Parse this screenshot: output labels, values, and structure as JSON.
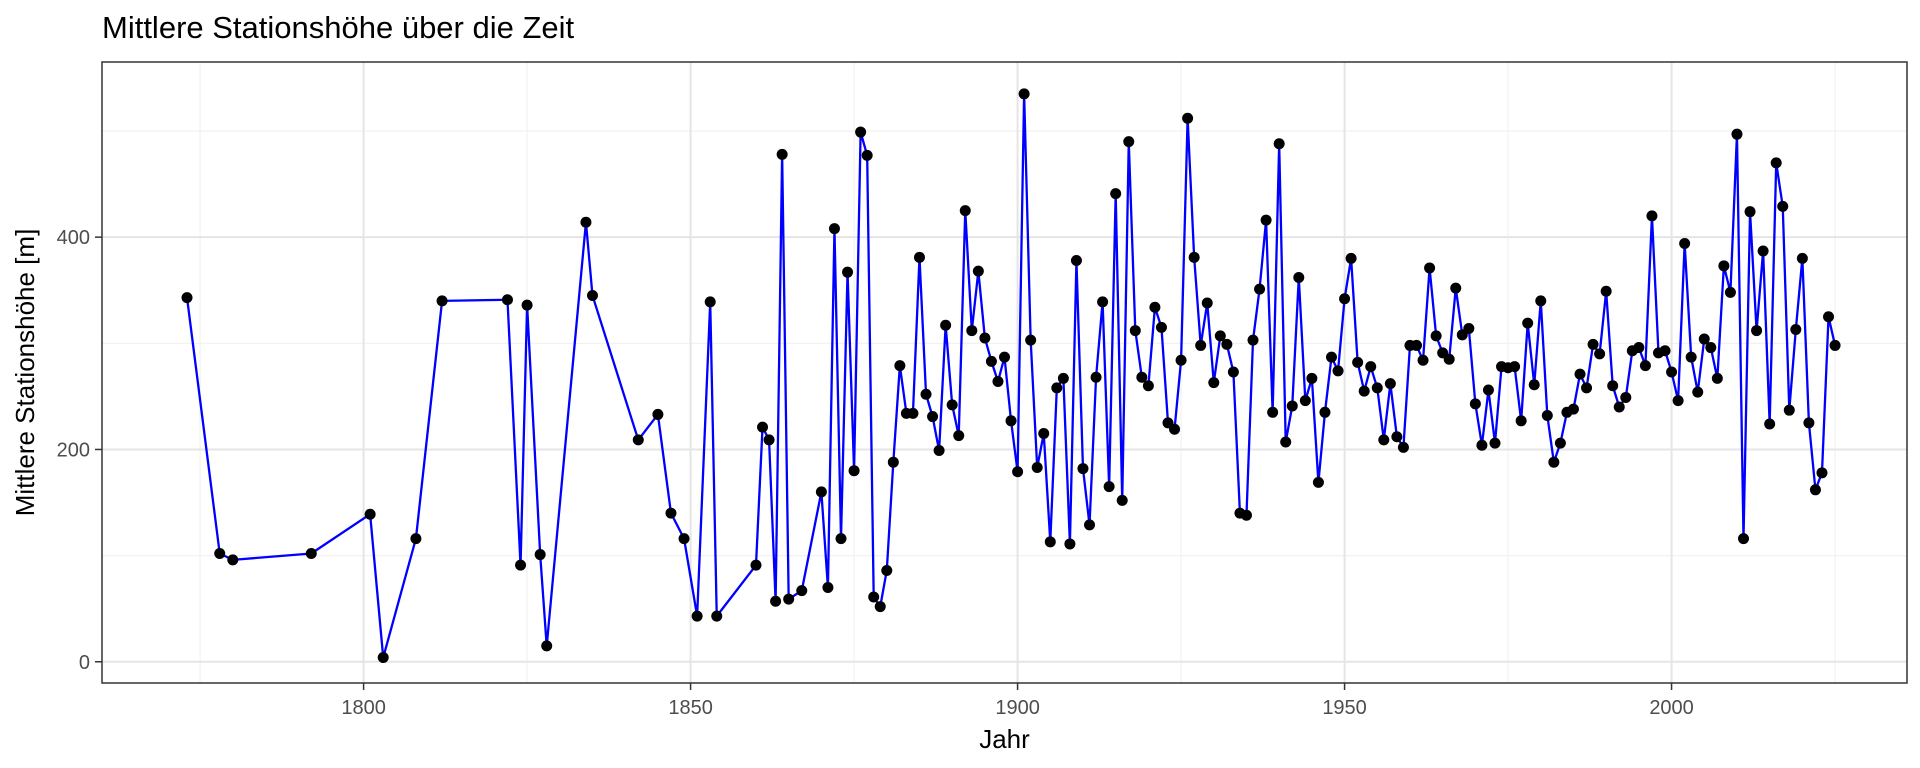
{
  "chart_data": {
    "type": "line",
    "title": "Mittlere Stationshöhe über die Zeit",
    "xlabel": "Jahr",
    "ylabel": "Mittlere Stationshöhe [m]",
    "xlim": [
      1760,
      2036
    ],
    "ylim": [
      -20,
      565
    ],
    "x_ticks": [
      1800,
      1850,
      1900,
      1950,
      2000
    ],
    "y_ticks": [
      0,
      200,
      400
    ],
    "grid": true,
    "legend": "none",
    "colors": {
      "line": "#0000ff",
      "points": "#000000"
    },
    "series": [
      {
        "x": [
          1773,
          1778,
          1780,
          1792,
          1801,
          1803,
          1808,
          1812,
          1822,
          1824,
          1825,
          1827,
          1828,
          1834,
          1835,
          1842,
          1845,
          1847,
          1849,
          1851,
          1853,
          1854,
          1860,
          1861,
          1862,
          1863,
          1864,
          1865,
          1867,
          1870,
          1871,
          1872,
          1873,
          1874,
          1875,
          1876,
          1877,
          1878,
          1879,
          1880,
          1881,
          1882,
          1883,
          1884,
          1885,
          1886,
          1887,
          1888,
          1889,
          1890,
          1891,
          1892,
          1893,
          1894,
          1895,
          1896,
          1897,
          1898,
          1899,
          1900,
          1901,
          1902,
          1903,
          1904,
          1905,
          1906,
          1907,
          1908,
          1909,
          1910,
          1911,
          1912,
          1913,
          1914,
          1915,
          1916,
          1917,
          1918,
          1919,
          1920,
          1921,
          1922,
          1923,
          1924,
          1925,
          1926,
          1927,
          1928,
          1929,
          1930,
          1931,
          1932,
          1933,
          1934,
          1935,
          1936,
          1937,
          1938,
          1939,
          1940,
          1941,
          1942,
          1943,
          1944,
          1945,
          1946,
          1947,
          1948,
          1949,
          1950,
          1951,
          1952,
          1953,
          1954,
          1955,
          1956,
          1957,
          1958,
          1959,
          1960,
          1961,
          1962,
          1963,
          1964,
          1965,
          1966,
          1967,
          1968,
          1969,
          1970,
          1971,
          1972,
          1973,
          1974,
          1975,
          1976,
          1977,
          1978,
          1979,
          1980,
          1981,
          1982,
          1983,
          1984,
          1985,
          1986,
          1987,
          1988,
          1989,
          1990,
          1991,
          1992,
          1993,
          1994,
          1995,
          1996,
          1997,
          1998,
          1999,
          2000,
          2001,
          2002,
          2003,
          2004,
          2005,
          2006,
          2007,
          2008,
          2009,
          2010,
          2011,
          2012,
          2013,
          2014,
          2015,
          2016,
          2017,
          2018,
          2019,
          2020,
          2021,
          2022,
          2023,
          2024,
          2025
        ],
        "y": [
          343,
          102,
          96,
          102,
          139,
          4,
          116,
          340,
          341,
          91,
          336,
          101,
          15,
          414,
          345,
          209,
          233,
          140,
          116,
          43,
          339,
          43,
          91,
          221,
          209,
          57,
          478,
          59,
          67,
          160,
          70,
          408,
          116,
          367,
          180,
          499,
          477,
          61,
          52,
          86,
          188,
          279,
          234,
          234,
          381,
          252,
          231,
          199,
          317,
          242,
          213,
          425,
          312,
          368,
          305,
          283,
          264,
          287,
          227,
          179,
          535,
          303,
          183,
          215,
          113,
          258,
          267,
          111,
          378,
          182,
          129,
          268,
          339,
          165,
          441,
          152,
          490,
          312,
          268,
          260,
          334,
          315,
          225,
          219,
          284,
          512,
          381,
          298,
          338,
          263,
          307,
          299,
          273,
          140,
          138,
          303,
          351,
          416,
          235,
          488,
          207,
          241,
          362,
          246,
          267,
          169,
          235,
          287,
          274,
          342,
          380,
          282,
          255,
          278,
          258,
          209,
          262,
          212,
          202,
          298,
          298,
          284,
          371,
          307,
          291,
          285,
          352,
          308,
          314,
          243,
          204,
          256,
          206,
          278,
          277,
          278,
          227,
          319,
          261,
          340,
          232,
          188,
          206,
          235,
          238,
          271,
          258,
          299,
          290,
          349,
          260,
          240,
          249,
          293,
          296,
          279,
          420,
          291,
          293,
          273,
          246,
          394,
          287,
          254,
          304,
          296,
          267,
          373,
          348,
          497,
          116,
          424,
          312,
          387,
          224,
          470,
          429,
          237,
          313,
          380,
          225,
          162,
          178,
          325,
          298
        ]
      }
    ]
  }
}
